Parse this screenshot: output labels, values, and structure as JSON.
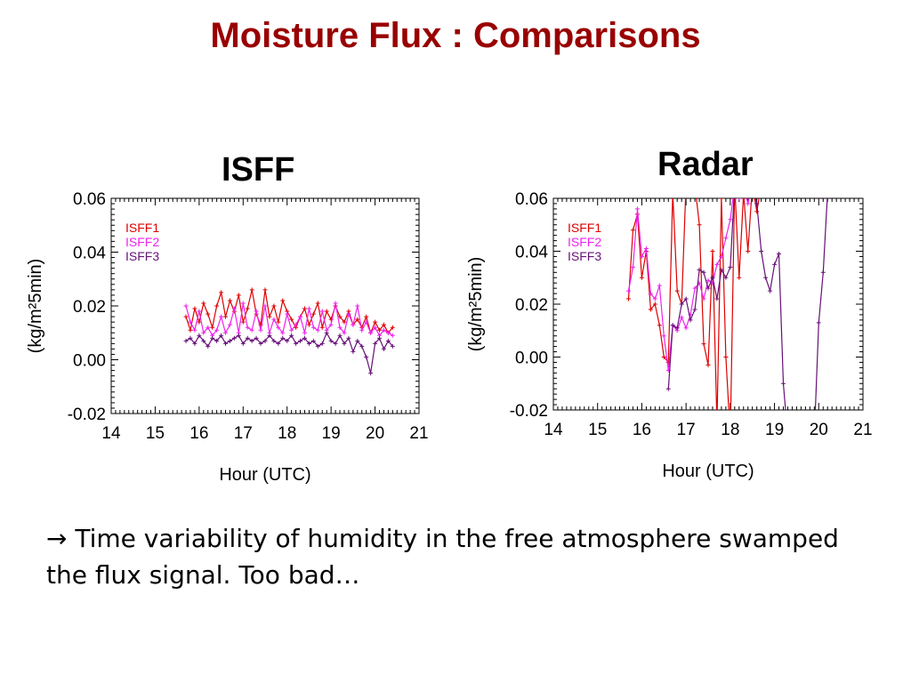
{
  "slide": {
    "title": "Moisture Flux : Comparisons",
    "bullet_arrow": "→",
    "bullet_text": "Time variability of humidity in the free atmosphere swamped the flux signal.  Too bad…"
  },
  "colors": {
    "title": "#990000",
    "isff1": "#dd0000",
    "isff2": "#ee22ee",
    "isff3": "#661177"
  },
  "chart_data": [
    {
      "type": "line",
      "title": "ISFF",
      "xlabel": "Hour (UTC)",
      "ylabel": "(kg/m²5min)",
      "xlim": [
        14,
        21
      ],
      "ylim": [
        -0.02,
        0.06
      ],
      "xticks": [
        "14",
        "15",
        "16",
        "17",
        "18",
        "19",
        "20",
        "21"
      ],
      "yticks": [
        "0.06",
        "0.04",
        "0.02",
        "0.00",
        "-0.02"
      ],
      "legend_position": "top-left",
      "series": [
        {
          "name": "ISFF1",
          "color": "#dd0000",
          "x": [
            15.7,
            15.8,
            15.9,
            16.0,
            16.1,
            16.2,
            16.3,
            16.4,
            16.5,
            16.6,
            16.7,
            16.8,
            16.9,
            17.0,
            17.1,
            17.2,
            17.3,
            17.4,
            17.5,
            17.6,
            17.7,
            17.8,
            17.9,
            18.0,
            18.1,
            18.2,
            18.3,
            18.4,
            18.5,
            18.6,
            18.7,
            18.8,
            18.9,
            19.0,
            19.1,
            19.2,
            19.3,
            19.4,
            19.5,
            19.6,
            19.7,
            19.8,
            19.9,
            20.0,
            20.1,
            20.2,
            20.3,
            20.4
          ],
          "y": [
            0.016,
            0.011,
            0.019,
            0.014,
            0.021,
            0.017,
            0.012,
            0.02,
            0.025,
            0.016,
            0.022,
            0.018,
            0.024,
            0.014,
            0.019,
            0.026,
            0.017,
            0.013,
            0.026,
            0.016,
            0.02,
            0.014,
            0.022,
            0.018,
            0.015,
            0.012,
            0.016,
            0.019,
            0.013,
            0.017,
            0.021,
            0.012,
            0.018,
            0.015,
            0.02,
            0.016,
            0.014,
            0.018,
            0.013,
            0.015,
            0.012,
            0.016,
            0.01,
            0.014,
            0.011,
            0.013,
            0.01,
            0.012
          ]
        },
        {
          "name": "ISFF2",
          "color": "#ee22ee",
          "x": [
            15.7,
            15.8,
            15.9,
            16.0,
            16.1,
            16.2,
            16.3,
            16.4,
            16.5,
            16.6,
            16.7,
            16.8,
            16.9,
            17.0,
            17.1,
            17.2,
            17.3,
            17.4,
            17.5,
            17.6,
            17.7,
            17.8,
            17.9,
            18.0,
            18.1,
            18.2,
            18.3,
            18.4,
            18.5,
            18.6,
            18.7,
            18.8,
            18.9,
            19.0,
            19.1,
            19.2,
            19.3,
            19.4,
            19.5,
            19.6,
            19.7,
            19.8,
            19.9,
            20.0,
            20.1,
            20.2,
            20.3,
            20.4
          ],
          "y": [
            0.02,
            0.014,
            0.011,
            0.018,
            0.01,
            0.012,
            0.009,
            0.011,
            0.016,
            0.01,
            0.013,
            0.019,
            0.01,
            0.021,
            0.012,
            0.011,
            0.018,
            0.011,
            0.02,
            0.01,
            0.015,
            0.012,
            0.01,
            0.017,
            0.011,
            0.013,
            0.016,
            0.01,
            0.019,
            0.012,
            0.011,
            0.018,
            0.011,
            0.013,
            0.021,
            0.012,
            0.01,
            0.017,
            0.013,
            0.02,
            0.011,
            0.014,
            0.01,
            0.012,
            0.009,
            0.011,
            0.01,
            0.009
          ]
        },
        {
          "name": "ISFF3",
          "color": "#661177",
          "x": [
            15.7,
            15.8,
            15.9,
            16.0,
            16.1,
            16.2,
            16.3,
            16.4,
            16.5,
            16.6,
            16.7,
            16.8,
            16.9,
            17.0,
            17.1,
            17.2,
            17.3,
            17.4,
            17.5,
            17.6,
            17.7,
            17.8,
            17.9,
            18.0,
            18.1,
            18.2,
            18.3,
            18.4,
            18.5,
            18.6,
            18.7,
            18.8,
            18.9,
            19.0,
            19.1,
            19.2,
            19.3,
            19.4,
            19.5,
            19.6,
            19.7,
            19.8,
            19.9,
            20.0,
            20.1,
            20.2,
            20.3,
            20.4
          ],
          "y": [
            0.007,
            0.008,
            0.006,
            0.009,
            0.007,
            0.005,
            0.008,
            0.007,
            0.009,
            0.006,
            0.007,
            0.008,
            0.009,
            0.006,
            0.008,
            0.007,
            0.008,
            0.006,
            0.007,
            0.009,
            0.007,
            0.006,
            0.008,
            0.007,
            0.009,
            0.006,
            0.007,
            0.008,
            0.006,
            0.007,
            0.005,
            0.006,
            0.01,
            0.007,
            0.006,
            0.009,
            0.006,
            0.008,
            0.003,
            0.007,
            0.005,
            0.001,
            -0.005,
            0.006,
            0.008,
            0.004,
            0.007,
            0.005
          ]
        }
      ]
    },
    {
      "type": "line",
      "title": "Radar",
      "xlabel": "Hour (UTC)",
      "ylabel": "(kg/m²5min)",
      "xlim": [
        14,
        21
      ],
      "ylim": [
        -0.02,
        0.06
      ],
      "xticks": [
        "14",
        "15",
        "16",
        "17",
        "18",
        "19",
        "20",
        "21"
      ],
      "yticks": [
        "0.06",
        "0.04",
        "0.02",
        "0.00",
        "-0.02"
      ],
      "legend_position": "top-left",
      "series": [
        {
          "name": "ISFF1",
          "color": "#dd0000",
          "x": [
            15.7,
            15.8,
            15.9,
            16.0,
            16.1,
            16.2,
            16.3,
            16.4,
            16.5,
            16.6,
            16.7,
            16.8,
            16.9,
            17.0,
            17.1,
            17.2,
            17.3,
            17.4,
            17.5,
            17.6,
            17.7,
            17.8,
            17.9,
            18.0,
            18.1,
            18.2,
            18.3,
            18.4,
            18.5,
            18.6,
            18.7
          ],
          "y": [
            0.022,
            0.048,
            0.054,
            0.03,
            0.04,
            0.018,
            0.02,
            0.012,
            0.0,
            -0.002,
            0.062,
            0.025,
            0.02,
            0.065,
            0.062,
            0.065,
            0.05,
            0.005,
            -0.003,
            0.04,
            -0.025,
            0.06,
            0.0,
            -0.03,
            0.065,
            0.03,
            0.062,
            0.04,
            0.065,
            0.055,
            0.065
          ]
        },
        {
          "name": "ISFF2",
          "color": "#ee22ee",
          "x": [
            15.7,
            15.8,
            15.9,
            16.0,
            16.1,
            16.2,
            16.3,
            16.4,
            16.5,
            16.6,
            16.7,
            16.8,
            16.9,
            17.0,
            17.1,
            17.2,
            17.3,
            17.4,
            17.5,
            17.6,
            17.7,
            17.8,
            17.9,
            18.0,
            18.1,
            18.2,
            18.3,
            18.4,
            18.5,
            18.6
          ],
          "y": [
            0.025,
            0.034,
            0.056,
            0.038,
            0.041,
            0.024,
            0.022,
            0.027,
            0.008,
            -0.005,
            0.012,
            0.01,
            0.015,
            0.011,
            0.016,
            0.026,
            0.028,
            0.022,
            0.029,
            0.028,
            0.035,
            0.038,
            0.045,
            0.052,
            0.065,
            0.06,
            0.065,
            0.058,
            0.065,
            0.062
          ]
        },
        {
          "name": "ISFF3",
          "color": "#661177",
          "x": [
            16.6,
            16.7,
            16.8,
            16.9,
            17.0,
            17.1,
            17.2,
            17.3,
            17.4,
            17.5,
            17.6,
            17.7,
            17.8,
            17.9,
            18.0,
            18.1,
            18.2,
            18.3,
            18.4,
            18.5,
            18.6,
            18.7,
            18.8,
            18.9,
            19.0,
            19.1,
            19.2,
            19.3,
            19.4,
            19.5,
            19.6,
            19.7,
            19.8,
            19.9,
            20.0,
            20.1,
            20.2
          ],
          "y": [
            -0.012,
            0.012,
            0.011,
            0.02,
            0.022,
            0.014,
            0.018,
            0.033,
            0.032,
            0.026,
            0.03,
            0.022,
            0.033,
            0.03,
            0.034,
            0.065,
            0.065,
            0.065,
            0.065,
            0.065,
            0.058,
            0.04,
            0.03,
            0.025,
            0.035,
            0.039,
            -0.01,
            -0.03,
            -0.03,
            -0.03,
            -0.03,
            -0.03,
            -0.03,
            -0.03,
            0.013,
            0.032,
            0.062
          ]
        }
      ]
    }
  ]
}
